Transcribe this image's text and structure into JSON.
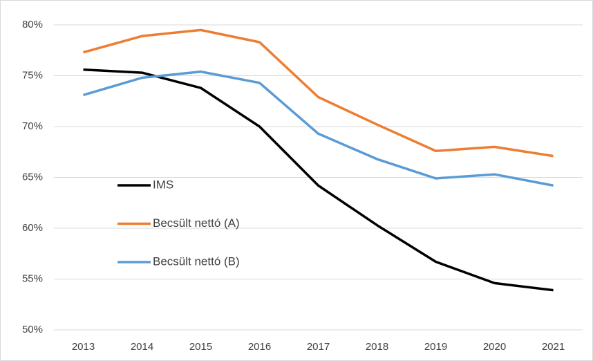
{
  "chart_data": {
    "type": "line",
    "categories": [
      "2013",
      "2014",
      "2015",
      "2016",
      "2017",
      "2018",
      "2019",
      "2020",
      "2021"
    ],
    "series": [
      {
        "name": "IMS",
        "color": "#000000",
        "values": [
          75.6,
          75.3,
          73.8,
          70.0,
          64.2,
          60.3,
          56.7,
          54.6,
          53.9
        ]
      },
      {
        "name": "Becsült nettó (A)",
        "color": "#ed7d31",
        "values": [
          77.3,
          78.9,
          79.5,
          78.3,
          72.9,
          70.2,
          67.6,
          68.0,
          67.1
        ]
      },
      {
        "name": "Becsült nettó (B)",
        "color": "#5b9bd5",
        "values": [
          73.1,
          74.8,
          75.4,
          74.3,
          69.3,
          66.8,
          64.9,
          65.3,
          64.2
        ]
      }
    ],
    "ylim": [
      50,
      80
    ],
    "yticks": [
      {
        "value": 50,
        "label": "50%"
      },
      {
        "value": 55,
        "label": "55%"
      },
      {
        "value": 60,
        "label": "60%"
      },
      {
        "value": 65,
        "label": "65%"
      },
      {
        "value": 70,
        "label": "70%"
      },
      {
        "value": 75,
        "label": "75%"
      },
      {
        "value": 80,
        "label": "80%"
      }
    ],
    "grid": true
  }
}
